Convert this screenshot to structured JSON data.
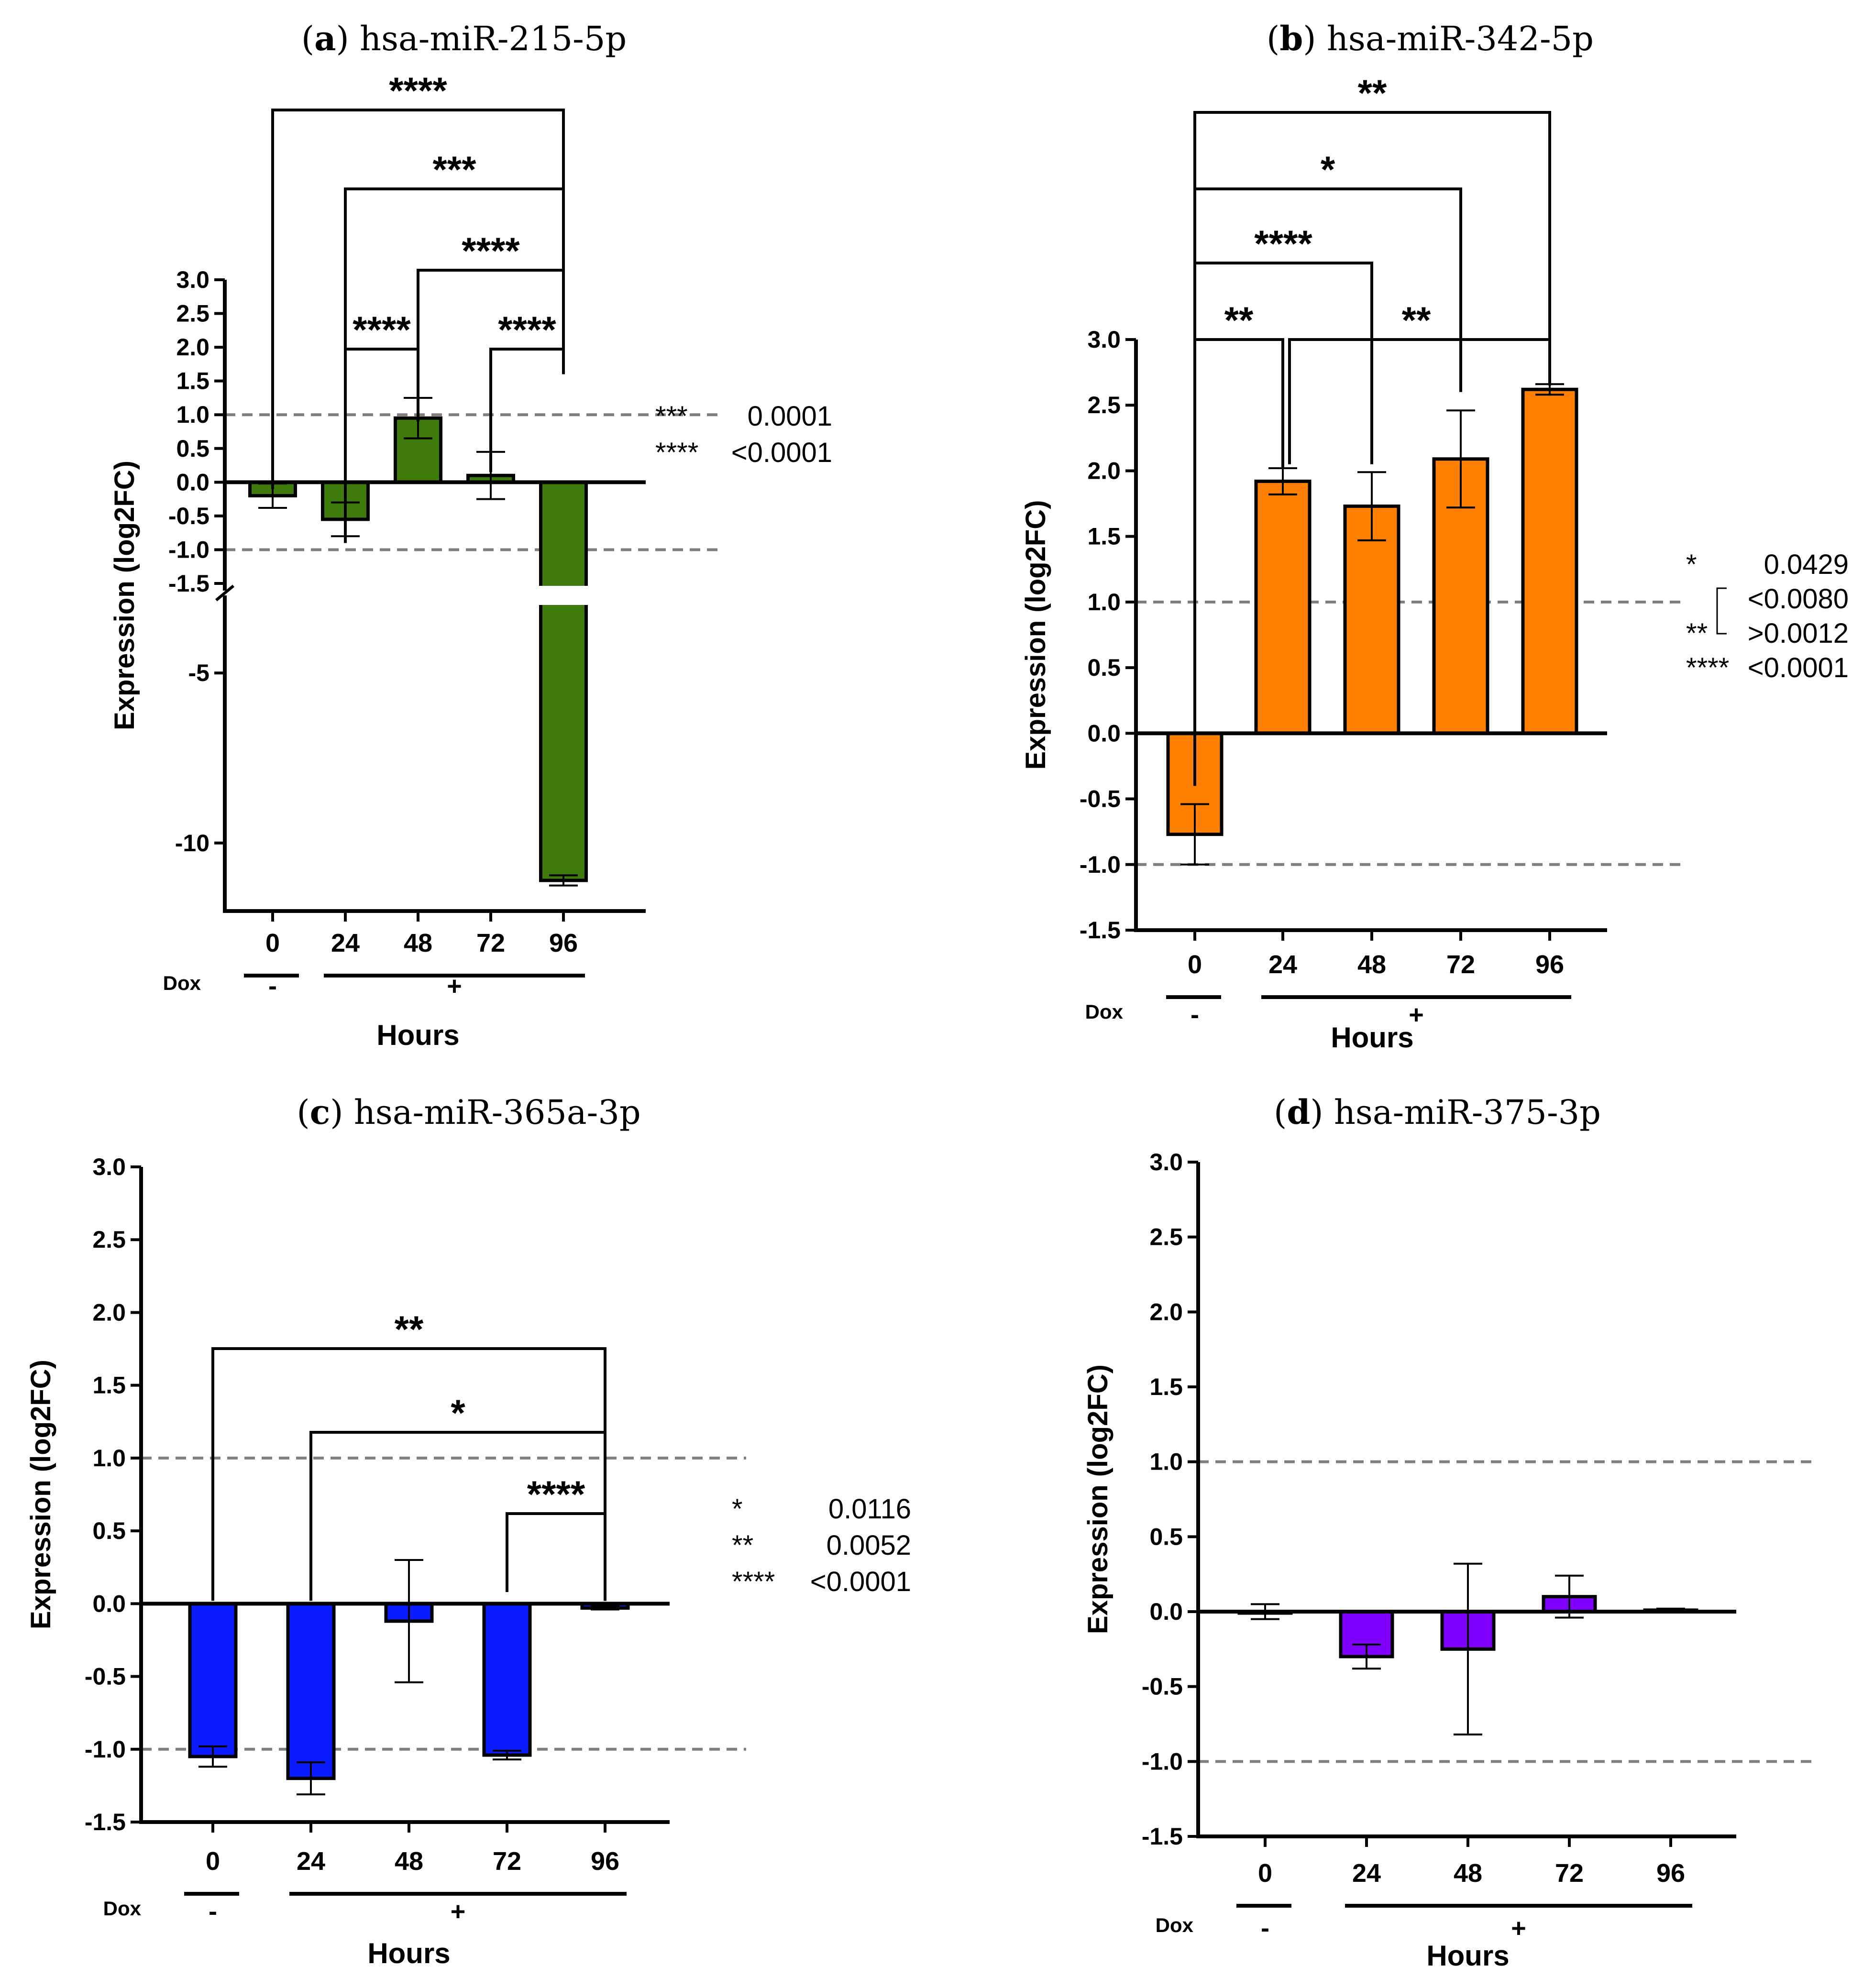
{
  "chart_data": [
    {
      "id": "a",
      "type": "bar",
      "title_letter": "a",
      "title_text": "hsa-miR-215-5p",
      "categories": [
        "0",
        "24",
        "48",
        "72",
        "96"
      ],
      "values": [
        -0.2,
        -0.55,
        0.95,
        0.1,
        -11.1
      ],
      "errors": [
        0.18,
        0.25,
        0.3,
        0.35,
        0.15
      ],
      "color": "#3f7a0d",
      "ylabel": "Expression (log2FC)",
      "xlabel": "Hours",
      "axis_break": [
        -1.5,
        -3
      ],
      "ticks_upper": [
        "3.0",
        "2.5",
        "2.0",
        "1.5",
        "1.0",
        "0.5",
        "0.0",
        "-0.5",
        "-1.0",
        "-1.5"
      ],
      "ticks_lower": [
        "-5",
        "-10"
      ],
      "reference_lines": [
        1.0,
        -1.0
      ],
      "dox": {
        "label": "Dox",
        "minus": "-",
        "plus": "+"
      },
      "brackets": [
        {
          "from": "24",
          "to": "48",
          "stars": "****"
        },
        {
          "from": "72",
          "to": "96",
          "stars": "****"
        },
        {
          "from": "48",
          "to": "96",
          "stars": "****"
        },
        {
          "from": "24",
          "to": "96",
          "stars": "***"
        },
        {
          "from": "0",
          "to": "96",
          "stars": "****"
        }
      ],
      "legend": [
        {
          "stars": "***",
          "value": "0.0001"
        },
        {
          "stars": "****",
          "value": "<0.0001"
        }
      ]
    },
    {
      "id": "b",
      "type": "bar",
      "title_letter": "b",
      "title_text": "hsa-miR-342-5p",
      "categories": [
        "0",
        "24",
        "48",
        "72",
        "96"
      ],
      "values": [
        -0.77,
        1.92,
        1.73,
        2.09,
        2.62
      ],
      "errors": [
        0.23,
        0.1,
        0.26,
        0.37,
        0.04
      ],
      "color": "#ff8000",
      "ylabel": "Expression (log2FC)",
      "xlabel": "Hours",
      "ylim": [
        -1.5,
        3.0
      ],
      "ticks": [
        "3.0",
        "2.5",
        "2.0",
        "1.5",
        "1.0",
        "0.5",
        "0.0",
        "-0.5",
        "-1.0",
        "-1.5"
      ],
      "reference_lines": [
        1.0,
        -1.0
      ],
      "dox": {
        "label": "Dox",
        "minus": "-",
        "plus": "+"
      },
      "brackets": [
        {
          "from": "0",
          "to": "24",
          "stars": "**"
        },
        {
          "from": "24",
          "to": "96",
          "stars": "**"
        },
        {
          "from": "0",
          "to": "48",
          "stars": "****"
        },
        {
          "from": "0",
          "to": "72",
          "stars": "*"
        },
        {
          "from": "0",
          "to": "96",
          "stars": "**"
        }
      ],
      "legend": [
        {
          "stars": "*",
          "value": "0.0429"
        },
        {
          "stars": "",
          "value": "<0.0080"
        },
        {
          "stars": "**",
          "value": ">0.0012"
        },
        {
          "stars": "****",
          "value": "<0.0001"
        }
      ]
    },
    {
      "id": "c",
      "type": "bar",
      "title_letter": "c",
      "title_text": "hsa-miR-365a-3p",
      "categories": [
        "0",
        "24",
        "48",
        "72",
        "96"
      ],
      "values": [
        -1.05,
        -1.2,
        -0.12,
        -1.04,
        -0.03
      ],
      "errors": [
        0.07,
        0.11,
        0.42,
        0.03,
        0.01
      ],
      "color": "#0a1cff",
      "ylabel": "Expression (log2FC)",
      "xlabel": "Hours",
      "ylim": [
        -1.5,
        3.0
      ],
      "ticks": [
        "3.0",
        "2.5",
        "2.0",
        "1.5",
        "1.0",
        "0.5",
        "0.0",
        "-0.5",
        "-1.0",
        "-1.5"
      ],
      "reference_lines": [
        1.0,
        -1.0
      ],
      "dox": {
        "label": "Dox",
        "minus": "-",
        "plus": "+"
      },
      "brackets": [
        {
          "from": "72",
          "to": "96",
          "stars": "****"
        },
        {
          "from": "24",
          "to": "96",
          "stars": "*"
        },
        {
          "from": "0",
          "to": "96",
          "stars": "**"
        }
      ],
      "legend": [
        {
          "stars": "*",
          "value": "0.0116"
        },
        {
          "stars": "**",
          "value": "0.0052"
        },
        {
          "stars": "****",
          "value": "<0.0001"
        }
      ]
    },
    {
      "id": "d",
      "type": "bar",
      "title_letter": "d",
      "title_text": "hsa-miR-375-3p",
      "categories": [
        "0",
        "24",
        "48",
        "72",
        "96"
      ],
      "values": [
        0.0,
        -0.3,
        -0.25,
        0.1,
        0.01
      ],
      "errors": [
        0.05,
        0.08,
        0.57,
        0.14,
        0.01
      ],
      "color": "#7f00ff",
      "ylabel": "Expression (log2FC)",
      "xlabel": "Hours",
      "ylim": [
        -1.5,
        3.0
      ],
      "ticks": [
        "3.0",
        "2.5",
        "2.0",
        "1.5",
        "1.0",
        "0.5",
        "0.0",
        "-0.5",
        "-1.0",
        "-1.5"
      ],
      "reference_lines": [
        1.0,
        -1.0
      ],
      "dox": {
        "label": "Dox",
        "minus": "-",
        "plus": "+"
      },
      "brackets": [],
      "legend": []
    }
  ]
}
